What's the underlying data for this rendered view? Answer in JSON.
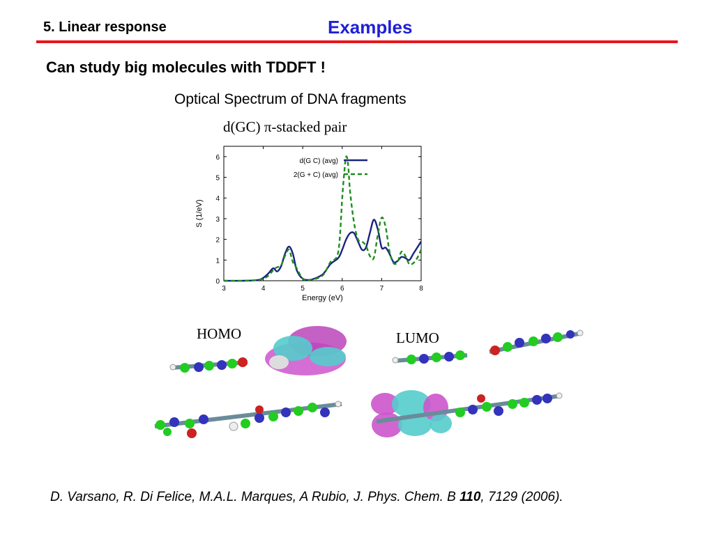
{
  "header": {
    "section": "5. Linear response",
    "title": "Examples"
  },
  "heading": "Can study big molecules with TDDFT !",
  "subtitle": "Optical Spectrum of DNA fragments",
  "pair_label": "d(GC) π-stacked pair",
  "chart_data": {
    "type": "line",
    "xlabel": "Energy (eV)",
    "ylabel": "S (1/eV)",
    "xlim": [
      3,
      8
    ],
    "ylim": [
      0,
      6.5
    ],
    "xticks": [
      "3",
      "4",
      "5",
      "6",
      "7",
      "8"
    ],
    "yticks": [
      "0",
      "1",
      "2",
      "3",
      "4",
      "5",
      "6"
    ],
    "legend_position": "top-left",
    "grid": false,
    "series": [
      {
        "name": "d(G C) (avg)",
        "color": "#1a237e",
        "style": "solid",
        "x": [
          3.0,
          3.5,
          3.9,
          4.1,
          4.25,
          4.35,
          4.45,
          4.55,
          4.65,
          4.75,
          4.85,
          5.0,
          5.2,
          5.5,
          5.7,
          5.9,
          6.0,
          6.1,
          6.2,
          6.3,
          6.4,
          6.5,
          6.6,
          6.7,
          6.8,
          6.9,
          7.0,
          7.1,
          7.2,
          7.3,
          7.4,
          7.5,
          7.6,
          7.7,
          7.8,
          7.9,
          8.0
        ],
        "y": [
          0.0,
          0.0,
          0.05,
          0.3,
          0.6,
          0.45,
          0.7,
          1.3,
          1.65,
          1.3,
          0.5,
          0.1,
          0.05,
          0.3,
          0.8,
          1.1,
          1.5,
          2.0,
          2.3,
          2.3,
          1.9,
          1.5,
          1.6,
          2.3,
          2.95,
          2.5,
          1.6,
          1.6,
          1.3,
          0.9,
          0.95,
          1.15,
          1.1,
          1.0,
          1.3,
          1.6,
          1.9
        ]
      },
      {
        "name": "2(G + C) (avg)",
        "color": "#1e8c1e",
        "style": "dashed",
        "x": [
          3.0,
          3.5,
          3.9,
          4.1,
          4.3,
          4.45,
          4.55,
          4.65,
          4.75,
          4.85,
          5.0,
          5.2,
          5.5,
          5.7,
          5.9,
          6.0,
          6.05,
          6.1,
          6.15,
          6.2,
          6.3,
          6.4,
          6.5,
          6.6,
          6.7,
          6.8,
          6.9,
          7.0,
          7.1,
          7.2,
          7.3,
          7.4,
          7.5,
          7.6,
          7.7,
          7.8,
          7.9,
          8.0
        ],
        "y": [
          0.0,
          0.0,
          0.05,
          0.2,
          0.6,
          0.75,
          1.2,
          1.5,
          0.9,
          0.6,
          0.1,
          0.05,
          0.25,
          0.9,
          1.4,
          4.0,
          5.2,
          6.0,
          5.6,
          4.3,
          2.8,
          2.0,
          1.9,
          1.7,
          1.2,
          1.1,
          2.2,
          3.05,
          2.6,
          1.4,
          0.85,
          0.9,
          1.4,
          1.2,
          0.8,
          0.85,
          1.1,
          1.5
        ]
      }
    ]
  },
  "orbitals": {
    "homo": "HOMO",
    "lumo": "LUMO"
  },
  "citation": {
    "authors": "D. Varsano, R. Di Felice, M.A.L. Marques, A Rubio",
    "sep": ", ",
    "journal": "J. Phys. Chem. B ",
    "volume": "110",
    "rest": ", 7129 (2006)."
  }
}
